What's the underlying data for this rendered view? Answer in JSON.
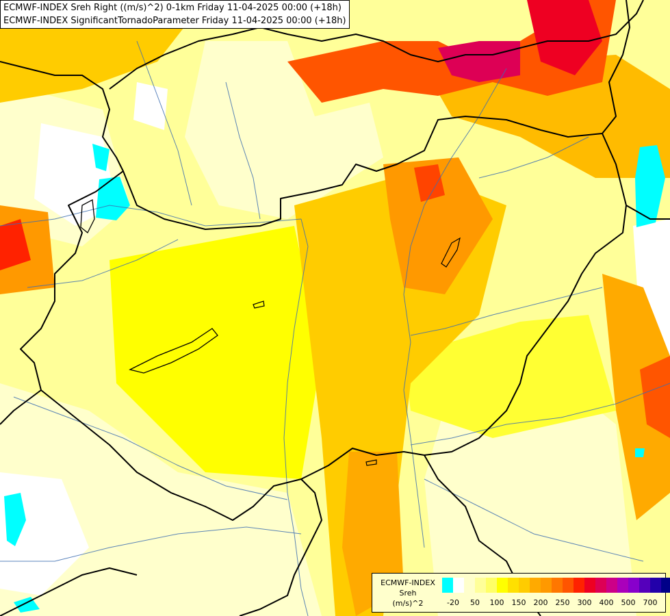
{
  "titles": {
    "line1": "ECMWF-INDEX Sreh Right ((m/s)^2) 0-1km Friday 11-04-2025 00:00 (+18h)",
    "line2": "ECMWF-INDEX SignificantTornadoParameter Friday 11-04-2025 00:00 (+18h)"
  },
  "legend": {
    "line1": "ECMWF-INDEX",
    "line2": "Sreh",
    "line3": "(m/s)^2",
    "swatch_colors": [
      "#00ffff",
      "#ffffff",
      "#ffffcc",
      "#ffff99",
      "#ffff66",
      "#ffff00",
      "#ffe000",
      "#ffcc00",
      "#ffaa00",
      "#ff9900",
      "#ff7700",
      "#ff5500",
      "#ff2200",
      "#ee0022",
      "#dd0055",
      "#cc0088",
      "#aa00bb",
      "#8800cc",
      "#5500bb",
      "#2200aa",
      "#000088"
    ],
    "ticks": [
      {
        "label": "-20",
        "index": 1
      },
      {
        "label": "50",
        "index": 3
      },
      {
        "label": "100",
        "index": 5
      },
      {
        "label": "150",
        "index": 7
      },
      {
        "label": "200",
        "index": 9
      },
      {
        "label": "250",
        "index": 11
      },
      {
        "label": "300",
        "index": 13
      },
      {
        "label": "400",
        "index": 15
      },
      {
        "label": "500",
        "index": 17
      },
      {
        "label": "700",
        "index": 19
      }
    ]
  }
}
